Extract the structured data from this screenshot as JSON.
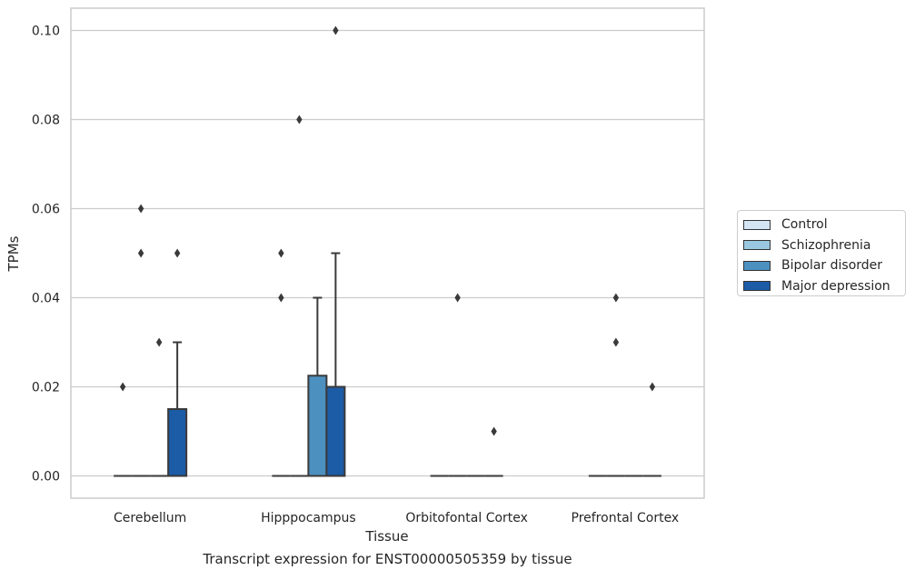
{
  "chart_data": {
    "type": "box",
    "caption": "Transcript expression for ENST00000505359 by tissue",
    "xlabel": "Tissue",
    "ylabel": "TPMs",
    "ylim": [
      -0.005,
      0.105
    ],
    "yticks": [
      0.0,
      0.02,
      0.04,
      0.06,
      0.08,
      0.1
    ],
    "ytick_labels": [
      "0.00",
      "0.02",
      "0.04",
      "0.06",
      "0.08",
      "0.10"
    ],
    "grid": true,
    "legend_position": "right",
    "categories": [
      "Cerebellum",
      "Hipppocampus",
      "Orbitofontal Cortex",
      "Prefrontal Cortex"
    ],
    "series": [
      {
        "name": "Control",
        "color": "#d3e4f3",
        "boxes": [
          {
            "q1": 0,
            "median": 0,
            "q3": 0,
            "whisker_low": 0,
            "whisker_high": 0,
            "outliers": [
              0.02
            ]
          },
          {
            "q1": 0,
            "median": 0,
            "q3": 0,
            "whisker_low": 0,
            "whisker_high": 0,
            "outliers": [
              0.04,
              0.05
            ]
          },
          {
            "q1": 0,
            "median": 0,
            "q3": 0,
            "whisker_low": 0,
            "whisker_high": 0,
            "outliers": []
          },
          {
            "q1": 0,
            "median": 0,
            "q3": 0,
            "whisker_low": 0,
            "whisker_high": 0,
            "outliers": []
          }
        ]
      },
      {
        "name": "Schizophrenia",
        "color": "#9ac7e0",
        "boxes": [
          {
            "q1": 0,
            "median": 0,
            "q3": 0,
            "whisker_low": 0,
            "whisker_high": 0,
            "outliers": [
              0.05,
              0.06
            ]
          },
          {
            "q1": 0,
            "median": 0,
            "q3": 0,
            "whisker_low": 0,
            "whisker_high": 0,
            "outliers": [
              0.08
            ]
          },
          {
            "q1": 0,
            "median": 0,
            "q3": 0,
            "whisker_low": 0,
            "whisker_high": 0,
            "outliers": [
              0.04
            ]
          },
          {
            "q1": 0,
            "median": 0,
            "q3": 0,
            "whisker_low": 0,
            "whisker_high": 0,
            "outliers": [
              0.03,
              0.04
            ]
          }
        ]
      },
      {
        "name": "Bipolar disorder",
        "color": "#4c90c0",
        "boxes": [
          {
            "q1": 0,
            "median": 0,
            "q3": 0,
            "whisker_low": 0,
            "whisker_high": 0,
            "outliers": [
              0.03
            ]
          },
          {
            "q1": 0,
            "median": 0,
            "q3": 0.0225,
            "whisker_low": 0,
            "whisker_high": 0.04,
            "outliers": []
          },
          {
            "q1": 0,
            "median": 0,
            "q3": 0,
            "whisker_low": 0,
            "whisker_high": 0,
            "outliers": []
          },
          {
            "q1": 0,
            "median": 0,
            "q3": 0,
            "whisker_low": 0,
            "whisker_high": 0,
            "outliers": []
          }
        ]
      },
      {
        "name": "Major depression",
        "color": "#1c5ba6",
        "boxes": [
          {
            "q1": 0,
            "median": 0,
            "q3": 0.015,
            "whisker_low": 0,
            "whisker_high": 0.03,
            "outliers": [
              0.05
            ]
          },
          {
            "q1": 0,
            "median": 0,
            "q3": 0.02,
            "whisker_low": 0,
            "whisker_high": 0.05,
            "outliers": [
              0.1
            ]
          },
          {
            "q1": 0,
            "median": 0,
            "q3": 0,
            "whisker_low": 0,
            "whisker_high": 0,
            "outliers": [
              0.01
            ]
          },
          {
            "q1": 0,
            "median": 0,
            "q3": 0,
            "whisker_low": 0,
            "whisker_high": 0,
            "outliers": [
              0.02
            ]
          }
        ]
      }
    ]
  }
}
